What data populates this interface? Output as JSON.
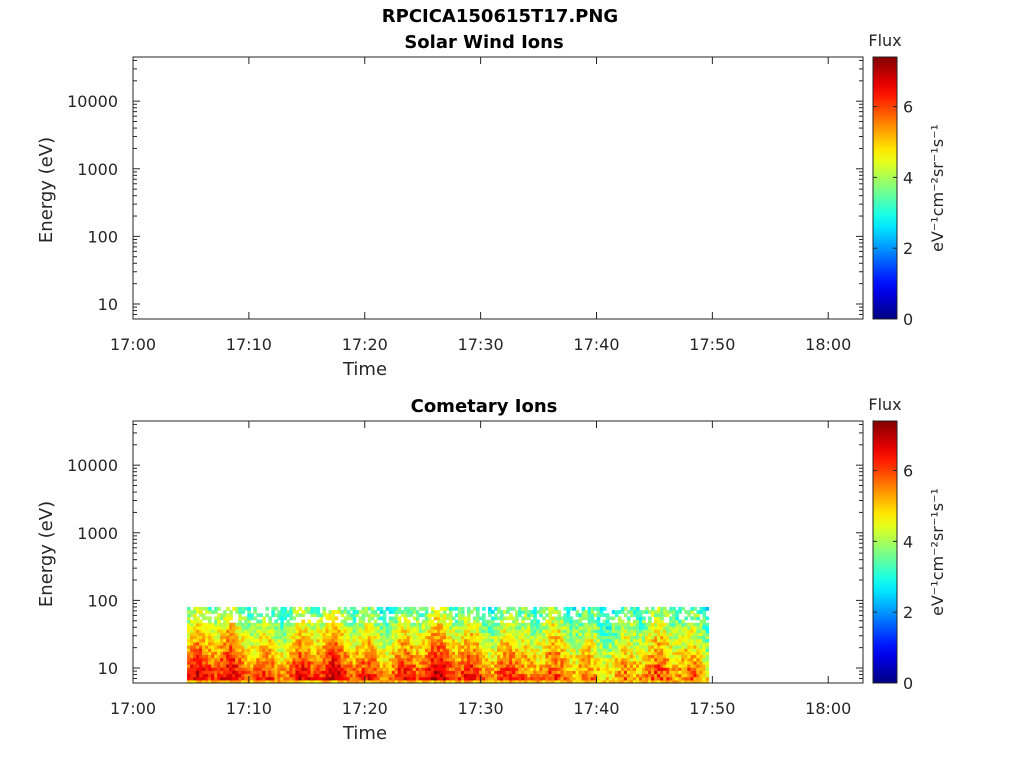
{
  "figure": {
    "filename": "RPCICA150615T17.PNG"
  },
  "chart_data": [
    {
      "type": "heatmap",
      "title": "Solar Wind Ions",
      "xlabel": "Time",
      "ylabel": "Energy (eV)",
      "x_ticks": [
        "17:00",
        "17:10",
        "17:20",
        "17:30",
        "17:40",
        "17:50",
        "18:00"
      ],
      "y_ticks": [
        "10",
        "100",
        "1000",
        "10000"
      ],
      "y_scale": "log",
      "xlim": [
        "17:00",
        "18:03"
      ],
      "ylim": [
        6,
        45000
      ],
      "colorbar": {
        "label_top": "Flux",
        "label_side": "eV⁻¹cm⁻²sr⁻¹s⁻¹",
        "ticks": [
          "0",
          "2",
          "4",
          "6"
        ],
        "range": [
          0,
          7.4
        ],
        "colormap": "jet"
      },
      "data": []
    },
    {
      "type": "heatmap",
      "title": "Cometary Ions",
      "xlabel": "Time",
      "ylabel": "Energy (eV)",
      "x_ticks": [
        "17:00",
        "17:10",
        "17:20",
        "17:30",
        "17:40",
        "17:50",
        "18:00"
      ],
      "y_ticks": [
        "10",
        "100",
        "1000",
        "10000"
      ],
      "y_scale": "log",
      "xlim": [
        "17:00",
        "18:03"
      ],
      "ylim": [
        6,
        45000
      ],
      "colorbar": {
        "label_top": "Flux",
        "label_side": "eV⁻¹cm⁻²sr⁻¹s⁻¹",
        "ticks": [
          "0",
          "2",
          "4",
          "6"
        ],
        "range": [
          0,
          7.4
        ],
        "colormap": "jet"
      },
      "data": [
        {
          "time_range": [
            "17:04:40",
            "17:33:30"
          ],
          "energy_range": [
            6,
            80
          ],
          "flux_range": [
            2.5,
            7.2
          ],
          "dominant": "red"
        },
        {
          "time_range": [
            "17:33:30",
            "17:49:40"
          ],
          "energy_range": [
            6,
            80
          ],
          "flux_range": [
            2.5,
            6.5
          ],
          "dominant": "orange"
        }
      ]
    }
  ]
}
